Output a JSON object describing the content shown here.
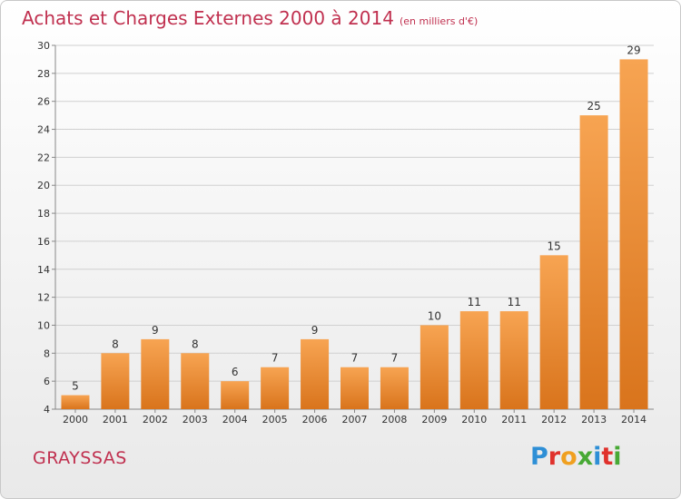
{
  "header": {
    "title": "Achats et Charges Externes 2000 à 2014",
    "subtitle": "(en milliers d'€)"
  },
  "footer": {
    "place": "GRAYSSAS",
    "brand": "Proxiti"
  },
  "colors": {
    "title": "#c0304f",
    "bar_light": "#f7a452",
    "bar_dark": "#d9741c",
    "grid": "#d0d0d0",
    "axis": "#888888"
  },
  "chart_data": {
    "type": "bar",
    "title": "Achats et Charges Externes 2000 à 2014",
    "subtitle": "(en milliers d'€)",
    "categories": [
      "2000",
      "2001",
      "2002",
      "2003",
      "2004",
      "2005",
      "2006",
      "2007",
      "2008",
      "2009",
      "2010",
      "2011",
      "2012",
      "2013",
      "2014"
    ],
    "values": [
      5,
      8,
      9,
      8,
      6,
      7,
      9,
      7,
      7,
      10,
      11,
      11,
      15,
      25,
      29
    ],
    "ylim": [
      4,
      30
    ],
    "yticks": [
      4,
      6,
      8,
      10,
      12,
      14,
      16,
      18,
      20,
      22,
      24,
      26,
      28,
      30
    ],
    "grid": true,
    "data_labels": true
  }
}
